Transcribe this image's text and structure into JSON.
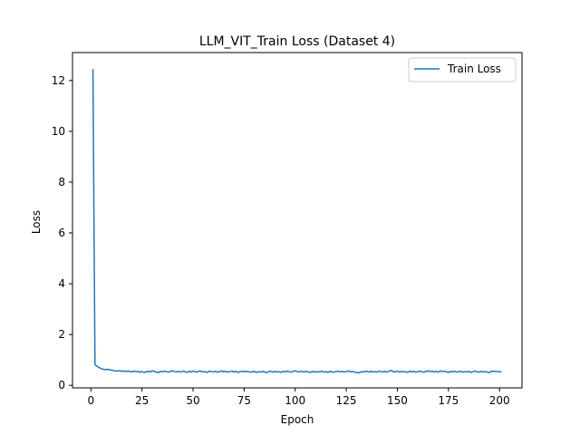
{
  "chart_data": {
    "type": "line",
    "title": "LLM_VIT_Train Loss  (Dataset 4)",
    "xlabel": "Epoch",
    "ylabel": "Loss",
    "xlim": [
      -9,
      211
    ],
    "ylim": [
      -0.1,
      13.1
    ],
    "xticks": [
      0,
      25,
      50,
      75,
      100,
      125,
      150,
      175,
      200
    ],
    "yticks": [
      0,
      2,
      4,
      6,
      8,
      10,
      12
    ],
    "grid": false,
    "legend_position": "top-right",
    "series": [
      {
        "name": "Train Loss",
        "color": "#1f77b4",
        "x": [
          1,
          2,
          3,
          4,
          5,
          6,
          7,
          8,
          9,
          10,
          11,
          12,
          13,
          14,
          15,
          16,
          17,
          18,
          19,
          20,
          21,
          22,
          23,
          24,
          25,
          26,
          27,
          28,
          29,
          30,
          31,
          32,
          33,
          34,
          35,
          36,
          37,
          38,
          39,
          40,
          41,
          42,
          43,
          44,
          45,
          46,
          47,
          48,
          49,
          50,
          51,
          52,
          53,
          54,
          55,
          56,
          57,
          58,
          59,
          60,
          61,
          62,
          63,
          64,
          65,
          66,
          67,
          68,
          69,
          70,
          71,
          72,
          73,
          74,
          75,
          76,
          77,
          78,
          79,
          80,
          81,
          82,
          83,
          84,
          85,
          86,
          87,
          88,
          89,
          90,
          91,
          92,
          93,
          94,
          95,
          96,
          97,
          98,
          99,
          100,
          101,
          102,
          103,
          104,
          105,
          106,
          107,
          108,
          109,
          110,
          111,
          112,
          113,
          114,
          115,
          116,
          117,
          118,
          119,
          120,
          121,
          122,
          123,
          124,
          125,
          126,
          127,
          128,
          129,
          130,
          131,
          132,
          133,
          134,
          135,
          136,
          137,
          138,
          139,
          140,
          141,
          142,
          143,
          144,
          145,
          146,
          147,
          148,
          149,
          150,
          151,
          152,
          153,
          154,
          155,
          156,
          157,
          158,
          159,
          160,
          161,
          162,
          163,
          164,
          165,
          166,
          167,
          168,
          169,
          170,
          171,
          172,
          173,
          174,
          175,
          176,
          177,
          178,
          179,
          180,
          181,
          182,
          183,
          184,
          185,
          186,
          187,
          188,
          189,
          190,
          191,
          192,
          193,
          194,
          195,
          196,
          197,
          198,
          199,
          200,
          201
        ],
        "y": [
          12.45,
          0.82,
          0.75,
          0.7,
          0.66,
          0.63,
          0.62,
          0.63,
          0.62,
          0.6,
          0.58,
          0.57,
          0.56,
          0.58,
          0.55,
          0.57,
          0.54,
          0.56,
          0.55,
          0.53,
          0.56,
          0.54,
          0.55,
          0.52,
          0.54,
          0.51,
          0.53,
          0.55,
          0.53,
          0.57,
          0.55,
          0.52,
          0.5,
          0.55,
          0.53,
          0.56,
          0.54,
          0.52,
          0.55,
          0.57,
          0.54,
          0.53,
          0.55,
          0.52,
          0.56,
          0.54,
          0.51,
          0.55,
          0.53,
          0.56,
          0.54,
          0.52,
          0.57,
          0.55,
          0.53,
          0.54,
          0.51,
          0.56,
          0.54,
          0.53,
          0.55,
          0.52,
          0.54,
          0.57,
          0.53,
          0.55,
          0.52,
          0.54,
          0.56,
          0.53,
          0.55,
          0.51,
          0.54,
          0.56,
          0.53,
          0.55,
          0.54,
          0.52,
          0.53,
          0.55,
          0.51,
          0.54,
          0.52,
          0.55,
          0.53,
          0.5,
          0.54,
          0.56,
          0.52,
          0.55,
          0.53,
          0.54,
          0.51,
          0.55,
          0.53,
          0.56,
          0.54,
          0.52,
          0.55,
          0.57,
          0.54,
          0.53,
          0.56,
          0.52,
          0.55,
          0.54,
          0.51,
          0.53,
          0.55,
          0.52,
          0.54,
          0.53,
          0.56,
          0.52,
          0.54,
          0.51,
          0.55,
          0.53,
          0.52,
          0.54,
          0.56,
          0.53,
          0.55,
          0.52,
          0.54,
          0.57,
          0.53,
          0.55,
          0.52,
          0.51,
          0.49,
          0.52,
          0.54,
          0.53,
          0.56,
          0.52,
          0.55,
          0.53,
          0.54,
          0.52,
          0.56,
          0.54,
          0.53,
          0.55,
          0.52,
          0.56,
          0.59,
          0.54,
          0.53,
          0.56,
          0.52,
          0.55,
          0.53,
          0.54,
          0.51,
          0.56,
          0.53,
          0.55,
          0.52,
          0.54,
          0.56,
          0.53,
          0.52,
          0.55,
          0.57,
          0.54,
          0.56,
          0.53,
          0.55,
          0.52,
          0.57,
          0.54,
          0.56,
          0.53,
          0.51,
          0.55,
          0.53,
          0.56,
          0.52,
          0.54,
          0.55,
          0.52,
          0.54,
          0.53,
          0.55,
          0.51,
          0.54,
          0.56,
          0.53,
          0.52,
          0.55,
          0.53,
          0.54,
          0.52,
          0.5,
          0.56,
          0.55,
          0.55,
          0.54,
          0.54,
          0.53
        ]
      }
    ]
  }
}
